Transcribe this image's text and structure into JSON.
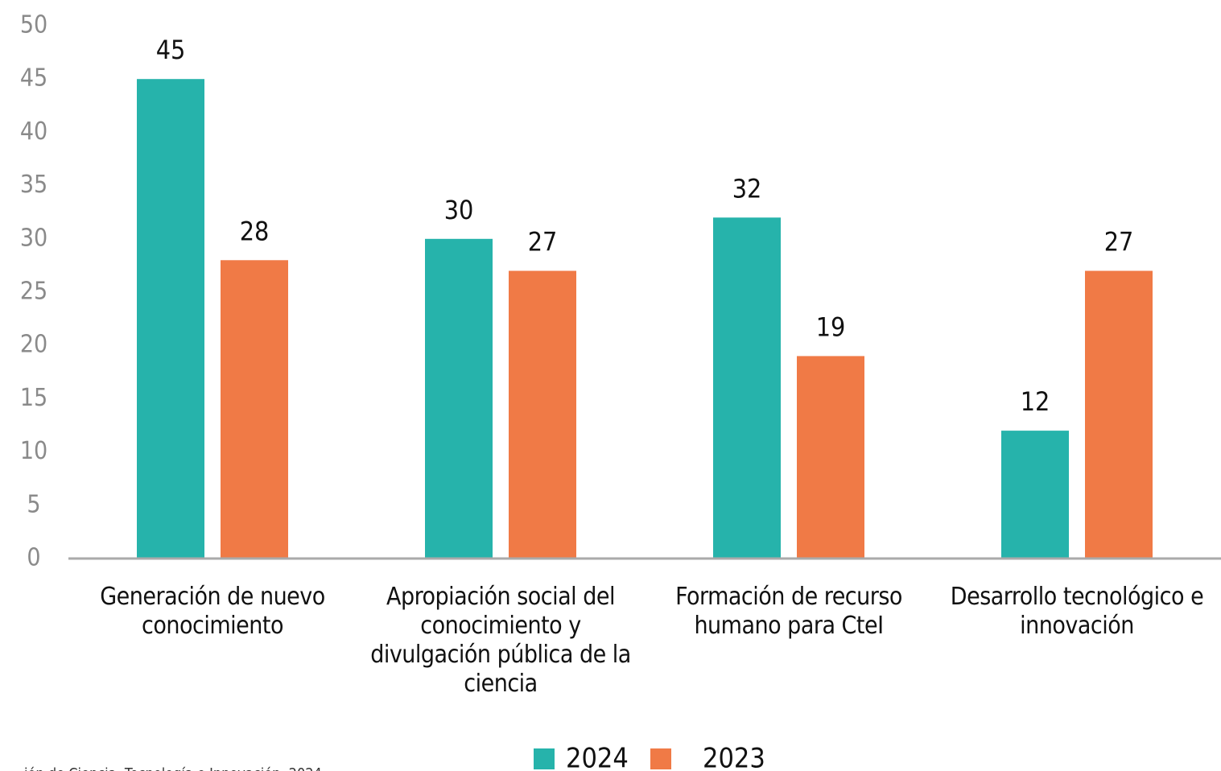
{
  "chart_data": {
    "type": "bar",
    "categories": [
      "Generación de nuevo conocimiento",
      "Apropiación social del conocimiento y divulgación pública de la ciencia",
      "Formación de recurso humano para CteI",
      "Desarrollo tecnológico e innovación"
    ],
    "series": [
      {
        "name": "2024",
        "color": "#26b3ab",
        "values": [
          45,
          30,
          32,
          12
        ]
      },
      {
        "name": "2023",
        "color": "#f07a46",
        "values": [
          28,
          27,
          19,
          27
        ]
      }
    ],
    "ylim": [
      0,
      50
    ],
    "yticks": [
      0,
      5,
      10,
      15,
      20,
      25,
      30,
      35,
      40,
      45,
      50
    ],
    "legend": "bottom",
    "source": "ión de Ciencia, Tecnología e Innovación, 2024"
  }
}
